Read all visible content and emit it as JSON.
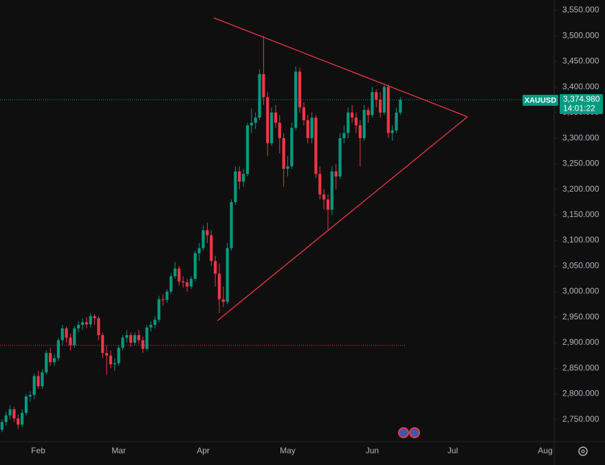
{
  "chart_data": {
    "type": "candlestick",
    "symbol": "XAUUSD",
    "last_price": {
      "value": 3374.98,
      "label": "3,374.980"
    },
    "countdown": "14:01:22",
    "reference_level": 2895,
    "up_color": "#089981",
    "down_color": "#f23645",
    "ylim": [
      2700,
      3570
    ],
    "yticks": [
      {
        "value": 2750,
        "label": "2,750.000"
      },
      {
        "value": 2800,
        "label": "2,800.000"
      },
      {
        "value": 2850,
        "label": "2,850.000"
      },
      {
        "value": 2900,
        "label": "2,900.000"
      },
      {
        "value": 2950,
        "label": "2,950.000"
      },
      {
        "value": 3000,
        "label": "3,000.000"
      },
      {
        "value": 3050,
        "label": "3,050.000"
      },
      {
        "value": 3100,
        "label": "3,100.000"
      },
      {
        "value": 3150,
        "label": "3,150.000"
      },
      {
        "value": 3200,
        "label": "3,200.000"
      },
      {
        "value": 3250,
        "label": "3,250.000"
      },
      {
        "value": 3300,
        "label": "3,300.000"
      },
      {
        "value": 3350,
        "label": "3,350.000"
      },
      {
        "value": 3400,
        "label": "3,400.000"
      },
      {
        "value": 3450,
        "label": "3,450.000"
      },
      {
        "value": 3500,
        "label": "3,500.000"
      },
      {
        "value": 3550,
        "label": "3,550.000"
      }
    ],
    "grid": false,
    "categories": [
      null,
      null,
      null,
      null,
      null,
      null,
      null,
      null,
      null,
      "Feb",
      null,
      null,
      null,
      null,
      null,
      null,
      null,
      null,
      null,
      null,
      null,
      null,
      null,
      null,
      null,
      null,
      null,
      null,
      null,
      "Mar",
      null,
      null,
      null,
      null,
      null,
      null,
      null,
      null,
      null,
      null,
      null,
      null,
      null,
      null,
      null,
      null,
      null,
      null,
      null,
      null,
      "Apr",
      null,
      null,
      null,
      null,
      null,
      null,
      null,
      null,
      null,
      null,
      null,
      null,
      null,
      null,
      null,
      null,
      null,
      null,
      null,
      null,
      "May",
      null,
      null,
      null,
      null,
      null,
      null,
      null,
      null,
      null,
      null,
      null,
      null,
      null,
      null,
      null,
      null,
      null,
      null,
      null,
      null,
      "Jun",
      null,
      null,
      null,
      null,
      null,
      null,
      null,
      null,
      null,
      null,
      null,
      null,
      null,
      null,
      null,
      null,
      null,
      null,
      null,
      "Jul",
      null,
      null,
      null,
      null,
      null,
      null,
      null,
      null,
      null,
      null,
      null,
      null,
      null,
      null,
      null,
      null,
      null,
      null,
      null,
      null,
      null,
      null,
      "Aug"
    ],
    "ohlc": [
      [
        2730,
        2750,
        2725,
        2745
      ],
      [
        2745,
        2765,
        2738,
        2758
      ],
      [
        2758,
        2778,
        2750,
        2770
      ],
      [
        2770,
        2775,
        2745,
        2752
      ],
      [
        2752,
        2760,
        2732,
        2740
      ],
      [
        2740,
        2770,
        2735,
        2763
      ],
      [
        2763,
        2800,
        2758,
        2795
      ],
      [
        2795,
        2805,
        2785,
        2798
      ],
      [
        2798,
        2840,
        2790,
        2835
      ],
      [
        2835,
        2845,
        2810,
        2815
      ],
      [
        2815,
        2848,
        2810,
        2842
      ],
      [
        2842,
        2885,
        2838,
        2880
      ],
      [
        2880,
        2890,
        2855,
        2862
      ],
      [
        2862,
        2878,
        2855,
        2870
      ],
      [
        2870,
        2910,
        2865,
        2905
      ],
      [
        2905,
        2935,
        2895,
        2928
      ],
      [
        2928,
        2932,
        2900,
        2910
      ],
      [
        2910,
        2918,
        2885,
        2895
      ],
      [
        2895,
        2933,
        2890,
        2928
      ],
      [
        2928,
        2942,
        2920,
        2935
      ],
      [
        2935,
        2948,
        2925,
        2940
      ],
      [
        2940,
        2950,
        2928,
        2936
      ],
      [
        2936,
        2958,
        2930,
        2952
      ],
      [
        2952,
        2956,
        2935,
        2948
      ],
      [
        2948,
        2952,
        2905,
        2915
      ],
      [
        2915,
        2920,
        2870,
        2880
      ],
      [
        2880,
        2895,
        2838,
        2875
      ],
      [
        2875,
        2885,
        2850,
        2858
      ],
      [
        2858,
        2870,
        2845,
        2860
      ],
      [
        2860,
        2895,
        2855,
        2890
      ],
      [
        2890,
        2915,
        2885,
        2910
      ],
      [
        2910,
        2925,
        2900,
        2915
      ],
      [
        2915,
        2920,
        2892,
        2900
      ],
      [
        2900,
        2920,
        2895,
        2915
      ],
      [
        2915,
        2925,
        2898,
        2905
      ],
      [
        2905,
        2912,
        2880,
        2888
      ],
      [
        2888,
        2935,
        2885,
        2930
      ],
      [
        2930,
        2942,
        2922,
        2935
      ],
      [
        2935,
        2952,
        2928,
        2945
      ],
      [
        2945,
        2992,
        2940,
        2985
      ],
      [
        2985,
        2995,
        2972,
        2984
      ],
      [
        2984,
        3005,
        2978,
        3000
      ],
      [
        3000,
        3036,
        2995,
        3030
      ],
      [
        3030,
        3058,
        3025,
        3045
      ],
      [
        3045,
        3050,
        3012,
        3020
      ],
      [
        3020,
        3030,
        3008,
        3018
      ],
      [
        3018,
        3025,
        3000,
        3010
      ],
      [
        3010,
        3030,
        3005,
        3025
      ],
      [
        3025,
        3080,
        3020,
        3075
      ],
      [
        3075,
        3095,
        3060,
        3085
      ],
      [
        3085,
        3130,
        3080,
        3120
      ],
      [
        3120,
        3135,
        3095,
        3110
      ],
      [
        3110,
        3120,
        3050,
        3060
      ],
      [
        3060,
        3070,
        3010,
        3035
      ],
      [
        3035,
        3055,
        2958,
        2985
      ],
      [
        2985,
        3010,
        2970,
        2980
      ],
      [
        2980,
        3095,
        2975,
        3085
      ],
      [
        3085,
        3180,
        3080,
        3175
      ],
      [
        3175,
        3245,
        3170,
        3235
      ],
      [
        3235,
        3245,
        3200,
        3215
      ],
      [
        3215,
        3240,
        3205,
        3230
      ],
      [
        3230,
        3330,
        3225,
        3325
      ],
      [
        3325,
        3358,
        3310,
        3330
      ],
      [
        3330,
        3350,
        3318,
        3340
      ],
      [
        3340,
        3435,
        3335,
        3425
      ],
      [
        3425,
        3500,
        3365,
        3380
      ],
      [
        3380,
        3390,
        3265,
        3290
      ],
      [
        3290,
        3360,
        3285,
        3350
      ],
      [
        3350,
        3365,
        3320,
        3330
      ],
      [
        3330,
        3345,
        3270,
        3300
      ],
      [
        3300,
        3310,
        3205,
        3240
      ],
      [
        3240,
        3265,
        3225,
        3245
      ],
      [
        3245,
        3330,
        3240,
        3320
      ],
      [
        3320,
        3440,
        3315,
        3430
      ],
      [
        3430,
        3438,
        3350,
        3360
      ],
      [
        3360,
        3370,
        3325,
        3335
      ],
      [
        3335,
        3345,
        3290,
        3300
      ],
      [
        3300,
        3350,
        3290,
        3340
      ],
      [
        3340,
        3345,
        3222,
        3230
      ],
      [
        3230,
        3245,
        3180,
        3190
      ],
      [
        3190,
        3200,
        3160,
        3180
      ],
      [
        3180,
        3190,
        3120,
        3160
      ],
      [
        3160,
        3245,
        3150,
        3235
      ],
      [
        3235,
        3250,
        3200,
        3225
      ],
      [
        3225,
        3310,
        3220,
        3300
      ],
      [
        3300,
        3325,
        3290,
        3310
      ],
      [
        3310,
        3360,
        3300,
        3350
      ],
      [
        3350,
        3365,
        3330,
        3340
      ],
      [
        3340,
        3350,
        3310,
        3325
      ],
      [
        3325,
        3335,
        3245,
        3300
      ],
      [
        3300,
        3365,
        3295,
        3355
      ],
      [
        3355,
        3360,
        3330,
        3345
      ],
      [
        3345,
        3400,
        3340,
        3390
      ],
      [
        3390,
        3395,
        3360,
        3375
      ],
      [
        3375,
        3390,
        3340,
        3350
      ],
      [
        3350,
        3405,
        3345,
        3400
      ],
      [
        3400,
        3405,
        3300,
        3310
      ],
      [
        3310,
        3325,
        3295,
        3315
      ],
      [
        3315,
        3360,
        3310,
        3350
      ],
      [
        3350,
        3380,
        3345,
        3374.98
      ],
      null,
      null,
      null,
      null,
      null,
      null,
      null,
      null,
      null,
      null,
      null,
      null,
      null,
      null,
      null,
      null,
      null,
      null,
      null,
      null,
      null,
      null,
      null,
      null,
      null,
      null,
      null,
      null,
      null,
      null,
      null,
      null,
      null,
      null,
      null,
      null
    ]
  }
}
